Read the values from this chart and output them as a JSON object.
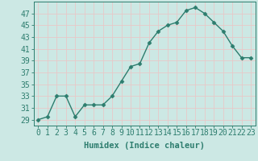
{
  "x": [
    0,
    1,
    2,
    3,
    4,
    5,
    6,
    7,
    8,
    9,
    10,
    11,
    12,
    13,
    14,
    15,
    16,
    17,
    18,
    19,
    20,
    21,
    22,
    23
  ],
  "y": [
    29,
    29.5,
    33,
    33,
    29.5,
    31.5,
    31.5,
    31.5,
    33,
    35.5,
    38,
    38.5,
    42,
    44,
    45,
    45.5,
    47.5,
    48,
    47,
    45.5,
    44,
    41.5,
    39.5,
    39.5
  ],
  "line_color": "#2d7d6e",
  "marker": "D",
  "marker_size": 2.5,
  "bg_color": "#cce8e4",
  "grid_color": "#e8c8c8",
  "tick_color": "#2d7d6e",
  "xlabel": "Humidex (Indice chaleur)",
  "ylabel_ticks": [
    29,
    31,
    33,
    35,
    37,
    39,
    41,
    43,
    45,
    47
  ],
  "ylim": [
    28,
    49
  ],
  "xlim": [
    -0.5,
    23.5
  ],
  "xlabel_fontsize": 7.5,
  "tick_fontsize": 7,
  "line_width": 1.0
}
